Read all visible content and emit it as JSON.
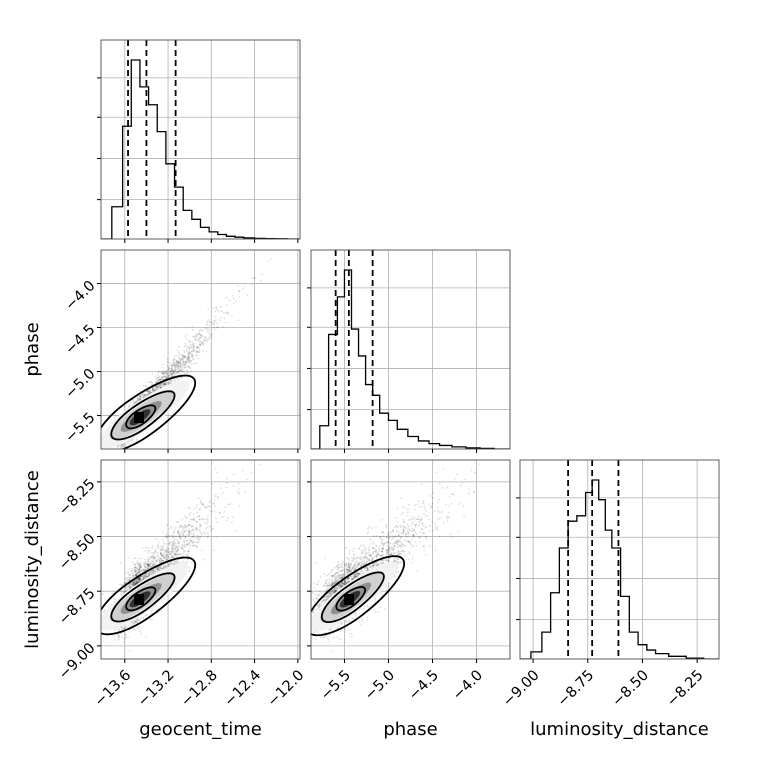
{
  "chart_data": {
    "type": "corner",
    "parameters": [
      "geocent_time",
      "phase",
      "luminosity_distance"
    ],
    "axis_labels": {
      "x": [
        "geocent_time",
        "phase",
        "luminosity_distance"
      ],
      "y": [
        "",
        "phase",
        "luminosity_distance"
      ]
    },
    "ranges": {
      "geocent_time": [
        -13.82,
        -11.98
      ],
      "phase": [
        -5.88,
        -3.62
      ],
      "luminosity_distance": [
        -9.06,
        -8.15
      ]
    },
    "ticks": {
      "geocent_time": [
        -13.6,
        -13.2,
        -12.8,
        -12.4,
        -12.0
      ],
      "phase": [
        -5.5,
        -5.0,
        -4.5,
        -4.0
      ],
      "luminosity_distance": [
        -9.0,
        -8.75,
        -8.5,
        -8.25
      ]
    },
    "tick_labels": {
      "geocent_time": [
        "−13.6",
        "−13.2",
        "−12.8",
        "−12.4",
        "−12.0"
      ],
      "phase": [
        "−5.5",
        "−5.0",
        "−4.5",
        "−4.0"
      ],
      "luminosity_distance": [
        "−9.00",
        "−8.75",
        "−8.50",
        "−8.25"
      ]
    },
    "quantiles": {
      "geocent_time": [
        -13.57,
        -13.4,
        -13.13
      ],
      "phase": [
        -5.6,
        -5.45,
        -5.18
      ],
      "luminosity_distance": [
        -8.84,
        -8.73,
        -8.61
      ]
    },
    "histograms": {
      "geocent_time": {
        "bin_edges": [
          -13.82,
          -13.72,
          -13.62,
          -13.54,
          -13.46,
          -13.38,
          -13.3,
          -13.22,
          -13.14,
          -13.06,
          -12.98,
          -12.9,
          -12.82,
          -12.74,
          -12.66,
          -12.58,
          -12.5,
          -12.4,
          -12.3,
          -12.2,
          -12.1,
          -11.98
        ],
        "counts": [
          0,
          0.18,
          0.63,
          1.0,
          0.85,
          0.75,
          0.6,
          0.42,
          0.29,
          0.16,
          0.11,
          0.065,
          0.04,
          0.025,
          0.015,
          0.01,
          0.006,
          0.003,
          0.002,
          0.001,
          0
        ]
      },
      "phase": {
        "bin_edges": [
          -5.88,
          -5.78,
          -5.68,
          -5.58,
          -5.5,
          -5.42,
          -5.34,
          -5.26,
          -5.18,
          -5.1,
          -5.0,
          -4.9,
          -4.78,
          -4.66,
          -4.54,
          -4.42,
          -4.28,
          -4.12,
          -3.96,
          -3.8,
          -3.62
        ],
        "counts": [
          0,
          0.13,
          0.64,
          0.85,
          1.0,
          0.67,
          0.52,
          0.36,
          0.3,
          0.2,
          0.16,
          0.11,
          0.07,
          0.045,
          0.03,
          0.02,
          0.012,
          0.006,
          0.003,
          0
        ]
      },
      "luminosity_distance": {
        "bin_edges": [
          -9.06,
          -9.01,
          -8.96,
          -8.92,
          -8.88,
          -8.84,
          -8.8,
          -8.76,
          -8.73,
          -8.7,
          -8.67,
          -8.64,
          -8.6,
          -8.56,
          -8.52,
          -8.48,
          -8.44,
          -8.38,
          -8.3,
          -8.22,
          -8.15
        ],
        "counts": [
          0,
          0.04,
          0.15,
          0.37,
          0.62,
          0.77,
          0.8,
          0.93,
          1.0,
          0.89,
          0.72,
          0.62,
          0.35,
          0.15,
          0.08,
          0.05,
          0.03,
          0.015,
          0.005,
          0
        ]
      }
    },
    "gridlines": true,
    "density_shading": "greyscale 2D histogram with contour levels"
  }
}
